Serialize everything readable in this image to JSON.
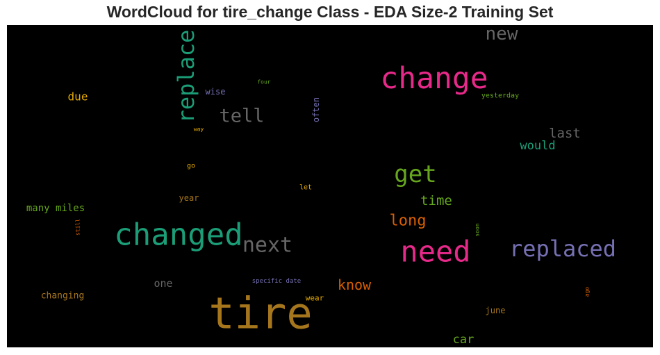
{
  "title": "WordCloud for tire_change Class - EDA Size-2 Training Set",
  "chart_data": {
    "type": "wordcloud",
    "title": "WordCloud for tire_change Class - EDA Size-2 Training Set",
    "background": "#000000",
    "words": [
      {
        "text": "tire",
        "weight": 100,
        "color": "#a6761d",
        "orientation": "horizontal"
      },
      {
        "text": "changed",
        "weight": 68,
        "color": "#1b9e77",
        "orientation": "horizontal"
      },
      {
        "text": "change",
        "weight": 66,
        "color": "#e7298a",
        "orientation": "horizontal"
      },
      {
        "text": "need",
        "weight": 64,
        "color": "#e7298a",
        "orientation": "horizontal"
      },
      {
        "text": "replace",
        "weight": 52,
        "color": "#1b9e77",
        "orientation": "vertical"
      },
      {
        "text": "replaced",
        "weight": 52,
        "color": "#7570b3",
        "orientation": "horizontal"
      },
      {
        "text": "get",
        "weight": 52,
        "color": "#66a61e",
        "orientation": "horizontal"
      },
      {
        "text": "next",
        "weight": 46,
        "color": "#666666",
        "orientation": "horizontal"
      },
      {
        "text": "tell",
        "weight": 40,
        "color": "#666666",
        "orientation": "horizontal"
      },
      {
        "text": "new",
        "weight": 38,
        "color": "#666666",
        "orientation": "horizontal"
      },
      {
        "text": "long",
        "weight": 34,
        "color": "#d95f02",
        "orientation": "horizontal"
      },
      {
        "text": "know",
        "weight": 30,
        "color": "#d95f02",
        "orientation": "horizontal"
      },
      {
        "text": "time",
        "weight": 29,
        "color": "#66a61e",
        "orientation": "horizontal"
      },
      {
        "text": "last",
        "weight": 28,
        "color": "#666666",
        "orientation": "horizontal"
      },
      {
        "text": "would",
        "weight": 25,
        "color": "#1b9e77",
        "orientation": "horizontal"
      },
      {
        "text": "car",
        "weight": 25,
        "color": "#66a61e",
        "orientation": "horizontal"
      },
      {
        "text": "due",
        "weight": 24,
        "color": "#e6ab02",
        "orientation": "horizontal"
      },
      {
        "text": "many miles",
        "weight": 21,
        "color": "#66a61e",
        "orientation": "horizontal"
      },
      {
        "text": "one",
        "weight": 21,
        "color": "#666666",
        "orientation": "horizontal"
      },
      {
        "text": "changing",
        "weight": 18,
        "color": "#a6761d",
        "orientation": "horizontal"
      },
      {
        "text": "year",
        "weight": 18,
        "color": "#a6761d",
        "orientation": "horizontal"
      },
      {
        "text": "june",
        "weight": 18,
        "color": "#a6761d",
        "orientation": "horizontal"
      },
      {
        "text": "often",
        "weight": 17,
        "color": "#7570b3",
        "orientation": "vertical"
      },
      {
        "text": "wise",
        "weight": 17,
        "color": "#7570b3",
        "orientation": "horizontal"
      },
      {
        "text": "wear",
        "weight": 16,
        "color": "#e6ab02",
        "orientation": "horizontal"
      },
      {
        "text": "go",
        "weight": 15,
        "color": "#e6ab02",
        "orientation": "horizontal"
      },
      {
        "text": "let",
        "weight": 15,
        "color": "#e6ab02",
        "orientation": "horizontal"
      },
      {
        "text": "yesterday",
        "weight": 14,
        "color": "#66a61e",
        "orientation": "horizontal"
      },
      {
        "text": "specific date",
        "weight": 13,
        "color": "#7570b3",
        "orientation": "horizontal"
      },
      {
        "text": "four",
        "weight": 12,
        "color": "#66a61e",
        "orientation": "horizontal"
      },
      {
        "text": "way",
        "weight": 11,
        "color": "#e6ab02",
        "orientation": "horizontal"
      },
      {
        "text": "ago",
        "weight": 11,
        "color": "#d95f02",
        "orientation": "vertical"
      },
      {
        "text": "still",
        "weight": 11,
        "color": "#d95f02",
        "orientation": "vertical"
      },
      {
        "text": "soon",
        "weight": 11,
        "color": "#66a61e",
        "orientation": "vertical"
      }
    ]
  }
}
